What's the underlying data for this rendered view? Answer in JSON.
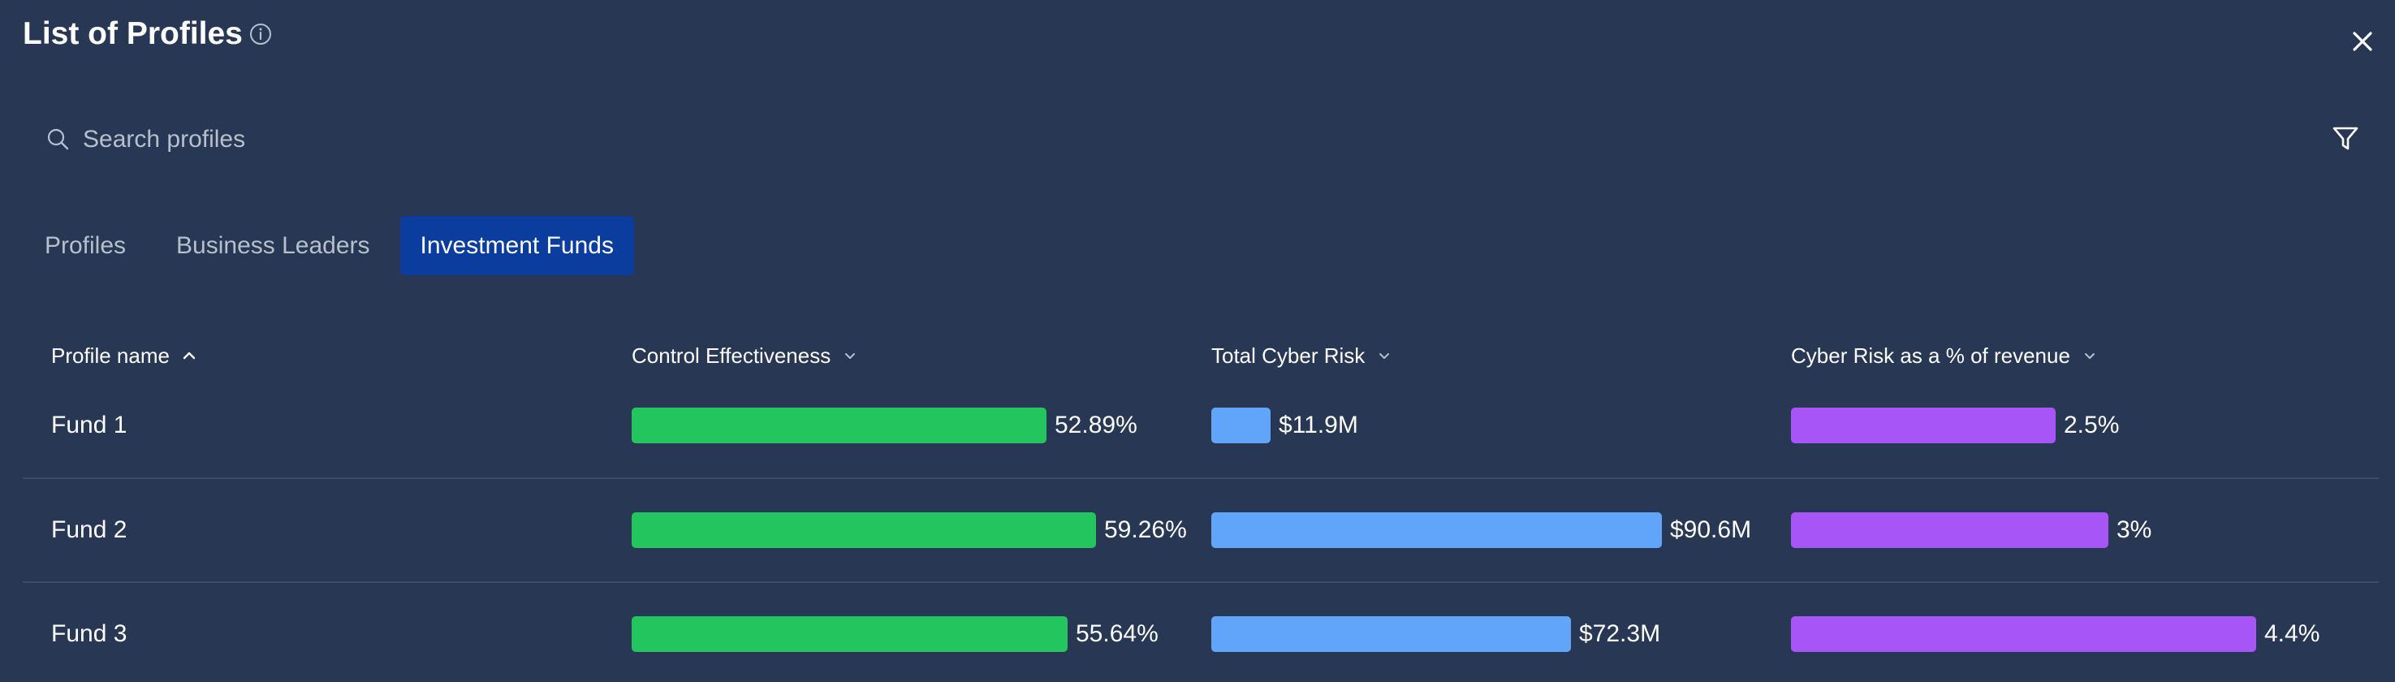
{
  "header": {
    "title": "List of Profiles"
  },
  "search": {
    "placeholder": "Search profiles",
    "value": ""
  },
  "tabs": [
    {
      "label": "Profiles",
      "active": false
    },
    {
      "label": "Business Leaders",
      "active": false
    },
    {
      "label": "Investment Funds",
      "active": true
    }
  ],
  "columns": {
    "name": "Profile name",
    "control": "Control Effectiveness",
    "risk": "Total Cyber Risk",
    "revenue": "Cyber Risk as a % of revenue"
  },
  "colors": {
    "background": "#283854",
    "active_tab": "#0a3d9e",
    "control_bar": "#22c55e",
    "risk_bar": "#60a5fa",
    "revenue_bar": "#a855f7"
  },
  "bar_scale_note": "Bars are shown relative to each column's own maximum.",
  "rows": [
    {
      "name": "Fund 1",
      "control_effectiveness": {
        "label": "52.89%",
        "value": 52.89
      },
      "total_cyber_risk": {
        "label": "$11.9M",
        "value": 11.9
      },
      "risk_pct_revenue": {
        "label": "2.5%",
        "value": 2.5
      }
    },
    {
      "name": "Fund 2",
      "control_effectiveness": {
        "label": "59.26%",
        "value": 59.26
      },
      "total_cyber_risk": {
        "label": "$90.6M",
        "value": 90.6
      },
      "risk_pct_revenue": {
        "label": "3%",
        "value": 3
      }
    },
    {
      "name": "Fund 3",
      "control_effectiveness": {
        "label": "55.64%",
        "value": 55.64
      },
      "total_cyber_risk": {
        "label": "$72.3M",
        "value": 72.3
      },
      "risk_pct_revenue": {
        "label": "4.4%",
        "value": 4.4
      }
    }
  ]
}
